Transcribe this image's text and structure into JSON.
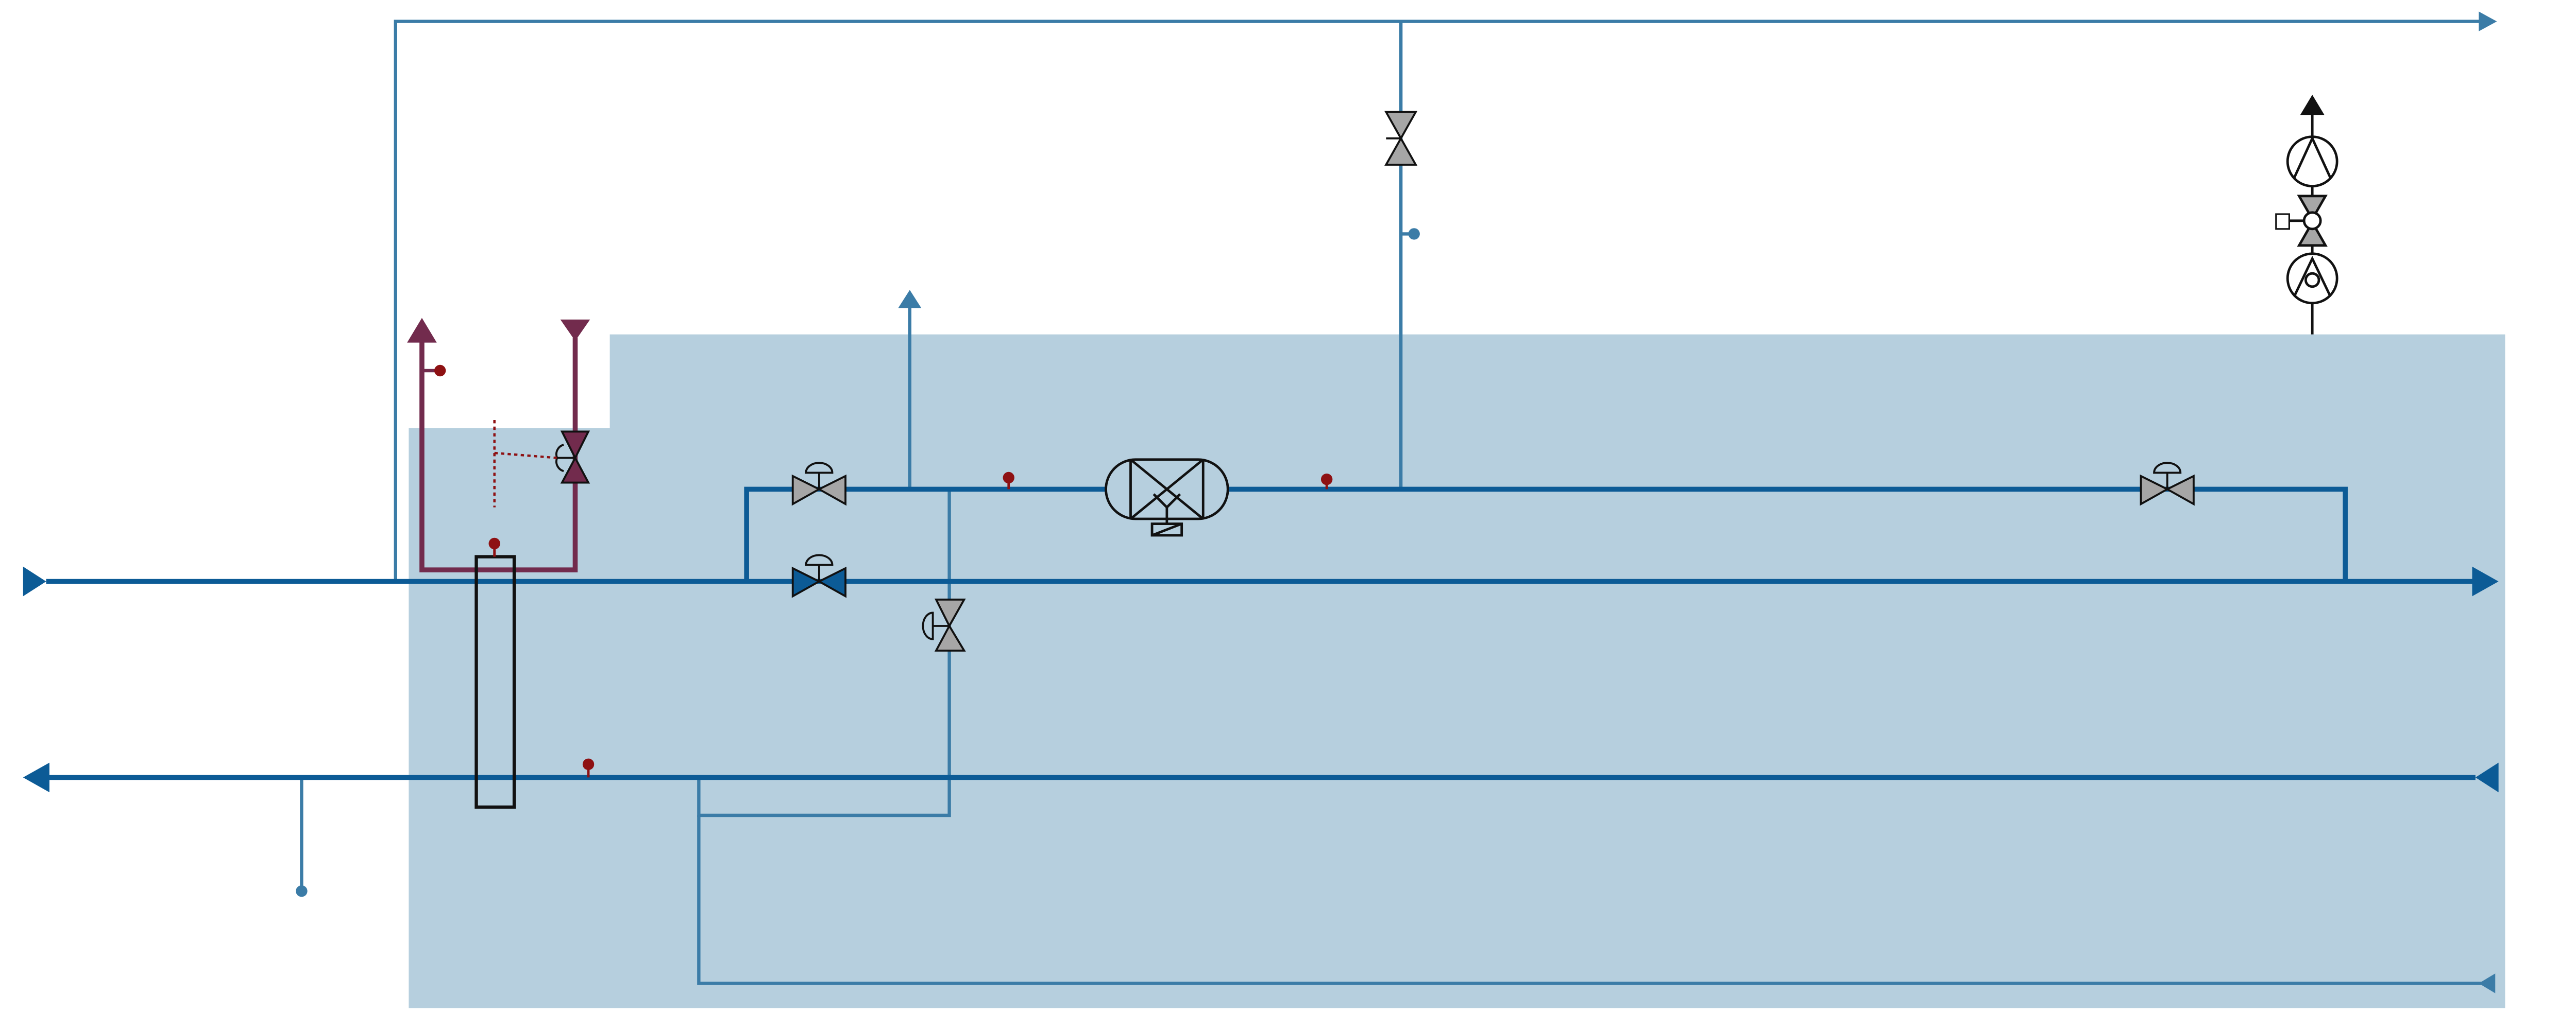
{
  "diagram": {
    "kind": "piping-and-instrumentation-schematic",
    "colors": {
      "background": "#ffffff",
      "zone_fill": "#b6cfde",
      "main_pipe": "#0c5b96",
      "branch_pipe": "#3b7ca7",
      "heating_pipe": "#722b4d",
      "sensor": "#8e1113",
      "valve_grey": "#a6a6a6",
      "outline": "#111111"
    },
    "components": [
      {
        "id": "supply-line",
        "type": "main pipe",
        "flow": "left-to-right"
      },
      {
        "id": "return-line",
        "type": "main pipe",
        "flow": "right-to-left"
      },
      {
        "id": "bypass-line",
        "type": "pipe loop"
      },
      {
        "id": "top-line",
        "type": "branch pipe",
        "flow": "left-to-right"
      },
      {
        "id": "heating-circuit",
        "type": "heating pipe pair"
      },
      {
        "id": "heat-exchanger",
        "type": "plate heat exchanger"
      },
      {
        "id": "filter",
        "type": "strainer / filter unit"
      },
      {
        "id": "pump-station",
        "type": "pump with valve and meter"
      },
      {
        "id": "motor-valves",
        "type": "control valves",
        "count": 6
      },
      {
        "id": "temperature-sensors",
        "type": "sensors",
        "count": 6
      }
    ]
  }
}
